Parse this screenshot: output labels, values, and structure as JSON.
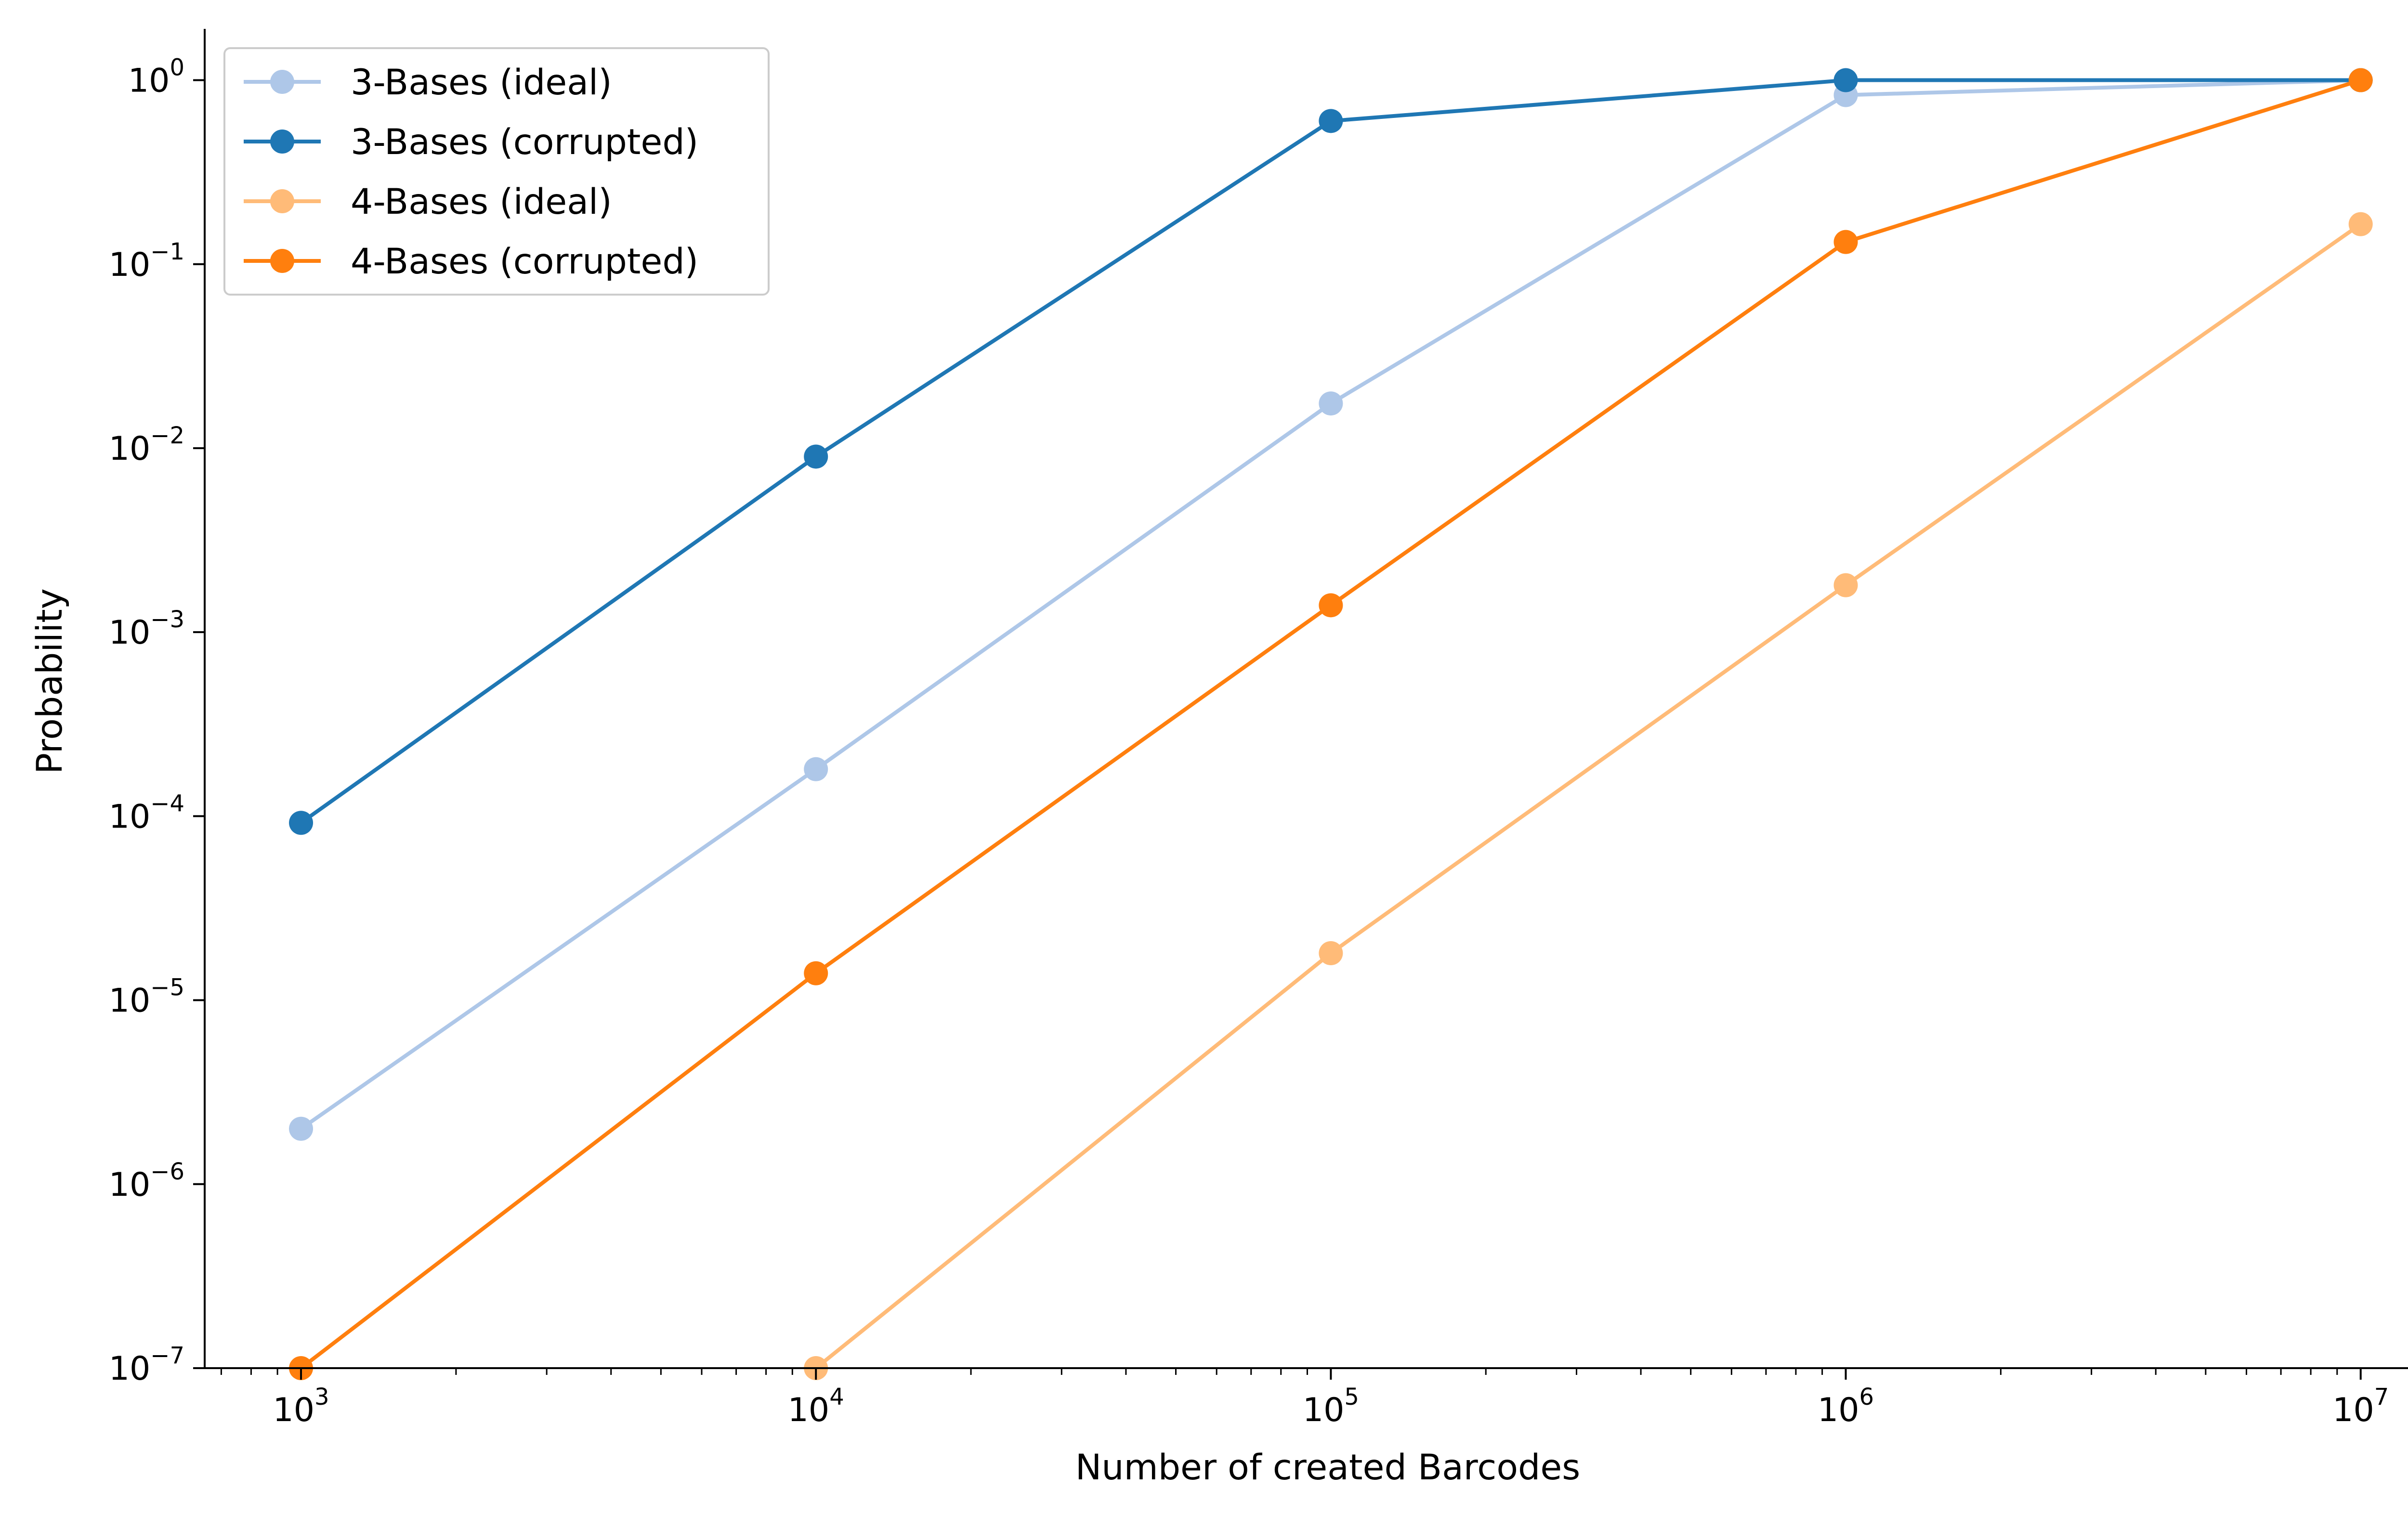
{
  "chart_data": {
    "type": "line",
    "xlabel": "Number of created Barcodes",
    "ylabel": "Probability",
    "x_scale": "log",
    "y_scale": "log",
    "xlim": [
      650,
      15000000
    ],
    "ylim": [
      1e-07,
      1.9
    ],
    "grid": false,
    "legend_position": "top-left",
    "x_ticks": [
      {
        "value": 1000,
        "base": "10",
        "exp": "3"
      },
      {
        "value": 10000,
        "base": "10",
        "exp": "4"
      },
      {
        "value": 100000,
        "base": "10",
        "exp": "5"
      },
      {
        "value": 1000000,
        "base": "10",
        "exp": "6"
      },
      {
        "value": 10000000,
        "base": "10",
        "exp": "7"
      }
    ],
    "y_ticks": [
      {
        "value": 1e-07,
        "base": "10",
        "exp": "−7"
      },
      {
        "value": 1e-06,
        "base": "10",
        "exp": "−6"
      },
      {
        "value": 1e-05,
        "base": "10",
        "exp": "−5"
      },
      {
        "value": 0.0001,
        "base": "10",
        "exp": "−4"
      },
      {
        "value": 0.001,
        "base": "10",
        "exp": "−3"
      },
      {
        "value": 0.01,
        "base": "10",
        "exp": "−2"
      },
      {
        "value": 0.1,
        "base": "10",
        "exp": "−1"
      },
      {
        "value": 1,
        "base": "10",
        "exp": "0"
      }
    ],
    "x": [
      1000,
      10000,
      100000,
      1000000,
      10000000
    ],
    "series": [
      {
        "name": "3-Bases (ideal)",
        "color": "#aec7e8",
        "values": [
          2e-06,
          0.00018,
          0.0175,
          0.83,
          1.0
        ]
      },
      {
        "name": "3-Bases (corrupted)",
        "color": "#1f77b4",
        "values": [
          9.2e-05,
          0.009,
          0.6,
          1.0,
          1.0
        ]
      },
      {
        "name": "4-Bases (ideal)",
        "color": "#ffbb78",
        "values": [
          null,
          1e-07,
          1.8e-05,
          0.0018,
          0.165
        ]
      },
      {
        "name": "4-Bases (corrupted)",
        "color": "#ff7f0e",
        "values": [
          1e-07,
          1.4e-05,
          0.0014,
          0.132,
          1.0
        ]
      }
    ]
  }
}
